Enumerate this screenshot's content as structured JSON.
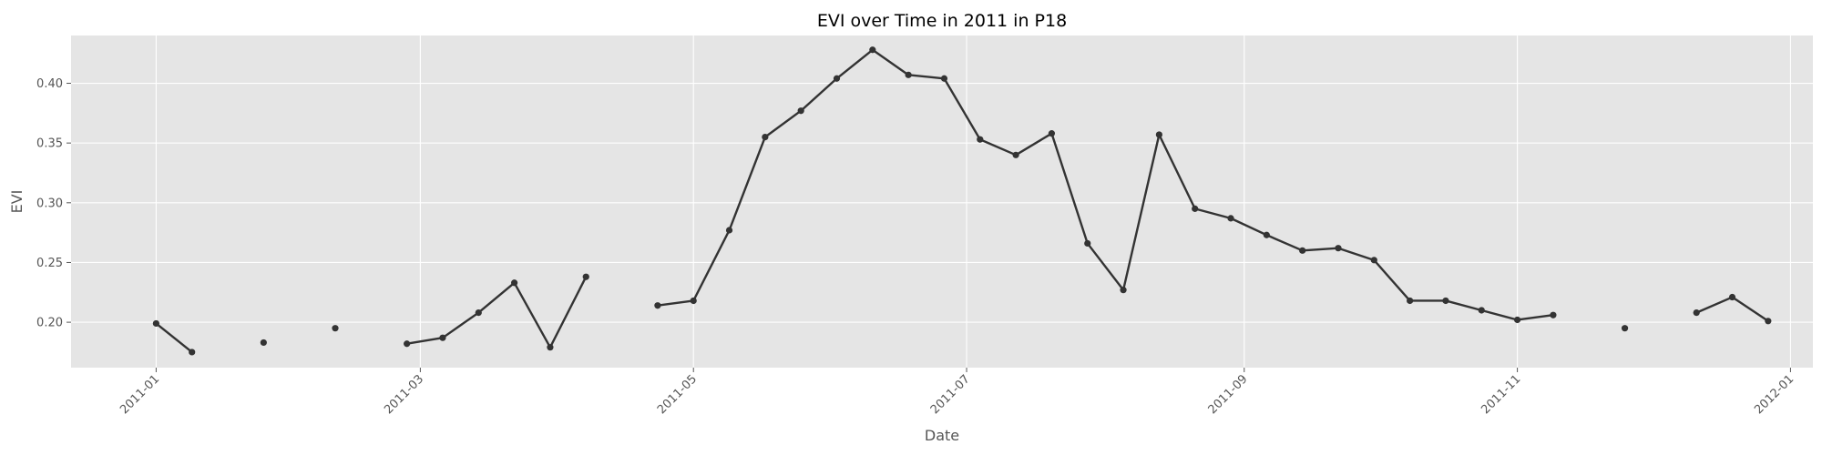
{
  "chart_data": {
    "type": "line",
    "title": "EVI over Time in 2011 in P18",
    "xlabel": "Date",
    "ylabel": "EVI",
    "x_ticks": [
      "2011-01",
      "2011-03",
      "2011-05",
      "2011-07",
      "2011-09",
      "2011-11",
      "2012-01"
    ],
    "y_ticks": [
      "0.20",
      "0.25",
      "0.30",
      "0.35",
      "0.40"
    ],
    "xlim": [
      "2010-12-13",
      "2012-01-06"
    ],
    "ylim": [
      0.162,
      0.44
    ],
    "grid": true,
    "series": [
      {
        "color": "#333333",
        "points": [
          {
            "date": "2011-01-01",
            "value": 0.199
          },
          {
            "date": "2011-01-09",
            "value": 0.175
          },
          {
            "date": "2011-01-17",
            "value": null
          },
          {
            "date": "2011-01-25",
            "value": 0.183
          },
          {
            "date": "2011-02-02",
            "value": null
          },
          {
            "date": "2011-02-10",
            "value": 0.195
          },
          {
            "date": "2011-02-18",
            "value": null
          },
          {
            "date": "2011-02-26",
            "value": 0.182
          },
          {
            "date": "2011-03-06",
            "value": 0.187
          },
          {
            "date": "2011-03-14",
            "value": 0.208
          },
          {
            "date": "2011-03-22",
            "value": 0.233
          },
          {
            "date": "2011-03-30",
            "value": 0.179
          },
          {
            "date": "2011-04-07",
            "value": 0.238
          },
          {
            "date": "2011-04-15",
            "value": null
          },
          {
            "date": "2011-04-23",
            "value": 0.214
          },
          {
            "date": "2011-05-01",
            "value": 0.218
          },
          {
            "date": "2011-05-09",
            "value": 0.277
          },
          {
            "date": "2011-05-17",
            "value": 0.355
          },
          {
            "date": "2011-05-25",
            "value": 0.377
          },
          {
            "date": "2011-06-02",
            "value": 0.404
          },
          {
            "date": "2011-06-10",
            "value": 0.428
          },
          {
            "date": "2011-06-18",
            "value": 0.407
          },
          {
            "date": "2011-06-26",
            "value": 0.404
          },
          {
            "date": "2011-07-04",
            "value": 0.353
          },
          {
            "date": "2011-07-12",
            "value": 0.34
          },
          {
            "date": "2011-07-20",
            "value": 0.358
          },
          {
            "date": "2011-07-28",
            "value": 0.266
          },
          {
            "date": "2011-08-05",
            "value": 0.227
          },
          {
            "date": "2011-08-13",
            "value": 0.357
          },
          {
            "date": "2011-08-21",
            "value": 0.295
          },
          {
            "date": "2011-08-29",
            "value": 0.287
          },
          {
            "date": "2011-09-06",
            "value": 0.273
          },
          {
            "date": "2011-09-14",
            "value": 0.26
          },
          {
            "date": "2011-09-22",
            "value": 0.262
          },
          {
            "date": "2011-09-30",
            "value": 0.252
          },
          {
            "date": "2011-10-08",
            "value": 0.218
          },
          {
            "date": "2011-10-16",
            "value": 0.218
          },
          {
            "date": "2011-10-24",
            "value": 0.21
          },
          {
            "date": "2011-11-01",
            "value": 0.202
          },
          {
            "date": "2011-11-09",
            "value": 0.206
          },
          {
            "date": "2011-11-17",
            "value": null
          },
          {
            "date": "2011-11-25",
            "value": 0.195
          },
          {
            "date": "2011-12-03",
            "value": null
          },
          {
            "date": "2011-12-11",
            "value": 0.208
          },
          {
            "date": "2011-12-19",
            "value": 0.221
          },
          {
            "date": "2011-12-27",
            "value": 0.201
          }
        ]
      }
    ],
    "colors": {
      "plot_background": "#e5e5e5",
      "grid": "#ffffff",
      "line": "#333333"
    }
  }
}
